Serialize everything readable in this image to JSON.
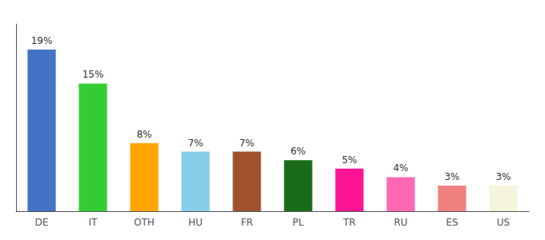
{
  "chart_data": {
    "type": "bar",
    "categories": [
      "DE",
      "IT",
      "OTH",
      "HU",
      "FR",
      "PL",
      "TR",
      "RU",
      "ES",
      "US"
    ],
    "values": [
      19,
      15,
      8,
      7,
      7,
      6,
      5,
      4,
      3,
      3
    ],
    "value_labels": [
      "19%",
      "15%",
      "8%",
      "7%",
      "7%",
      "6%",
      "5%",
      "4%",
      "3%",
      "3%"
    ],
    "colors": [
      "#4472C4",
      "#33CC33",
      "#FFA500",
      "#87CEEB",
      "#A0522D",
      "#1A6B1A",
      "#FF1493",
      "#FF69B4",
      "#F08080",
      "#F5F5DC"
    ],
    "ylim": [
      0,
      22
    ],
    "data_labels": true,
    "tick_labels": "x",
    "grid": false
  }
}
